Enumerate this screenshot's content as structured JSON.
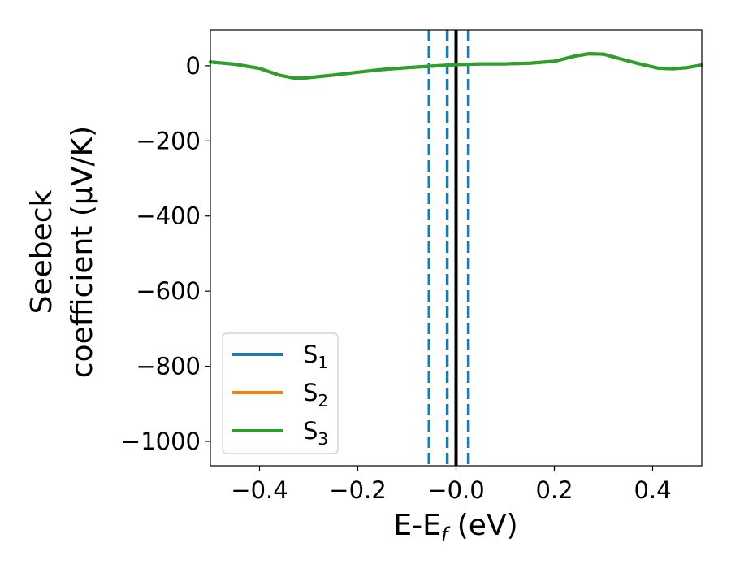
{
  "chart_data": {
    "type": "line",
    "title": "",
    "xlabel": {
      "base": "E-E",
      "sub": "f",
      "suffix": " (eV)"
    },
    "ylabel": {
      "line1": "Seebeck",
      "line2": "coefficient  (μV/K)"
    },
    "xlim": [
      -0.5,
      0.5
    ],
    "ylim": [
      -1065,
      95
    ],
    "xticks": [
      -0.4,
      -0.2,
      0.0,
      0.2,
      0.4
    ],
    "xtick_labels": [
      "−0.4",
      "−0.2",
      "−0.0",
      "0.2",
      "0.4"
    ],
    "yticks": [
      0,
      -200,
      -400,
      -600,
      -800,
      -1000
    ],
    "ytick_labels": [
      "0",
      "−200",
      "−400",
      "−600",
      "−800",
      "−1000"
    ],
    "x": [
      -0.5,
      -0.45,
      -0.4,
      -0.36,
      -0.33,
      -0.31,
      -0.28,
      -0.25,
      -0.2,
      -0.15,
      -0.1,
      -0.05,
      0.0,
      0.05,
      0.1,
      0.15,
      0.2,
      0.24,
      0.27,
      0.3,
      0.33,
      0.37,
      0.41,
      0.44,
      0.47,
      0.5
    ],
    "series": [
      {
        "name": "S",
        "sub": "1",
        "color": "#1f77b4",
        "values": [
          10,
          4,
          -7,
          -25,
          -33,
          -33,
          -29,
          -25,
          -17,
          -10,
          -5,
          -1,
          3,
          5,
          5,
          7,
          12,
          25,
          32,
          31,
          20,
          6,
          -6,
          -8,
          -5,
          2
        ]
      },
      {
        "name": "S",
        "sub": "2",
        "color": "#ff7f0e",
        "values": [
          10,
          4,
          -7,
          -25,
          -33,
          -33,
          -29,
          -25,
          -17,
          -10,
          -5,
          -1,
          3,
          5,
          5,
          7,
          12,
          25,
          32,
          31,
          20,
          6,
          -6,
          -8,
          -5,
          2
        ]
      },
      {
        "name": "S",
        "sub": "3",
        "color": "#2ca02c",
        "values": [
          10,
          4,
          -7,
          -25,
          -33,
          -33,
          -29,
          -25,
          -17,
          -10,
          -5,
          -1,
          3,
          5,
          5,
          7,
          12,
          25,
          32,
          31,
          20,
          6,
          -6,
          -8,
          -5,
          2
        ]
      }
    ],
    "vlines": [
      {
        "x": -0.055,
        "color": "#1f77b4",
        "style": "dashed"
      },
      {
        "x": -0.018,
        "color": "#1f77b4",
        "style": "dashed"
      },
      {
        "x": 0.0,
        "color": "#000000",
        "style": "solid"
      },
      {
        "x": 0.025,
        "color": "#1f77b4",
        "style": "dashed"
      }
    ],
    "legend_position": "lower-left",
    "grid": false
  }
}
